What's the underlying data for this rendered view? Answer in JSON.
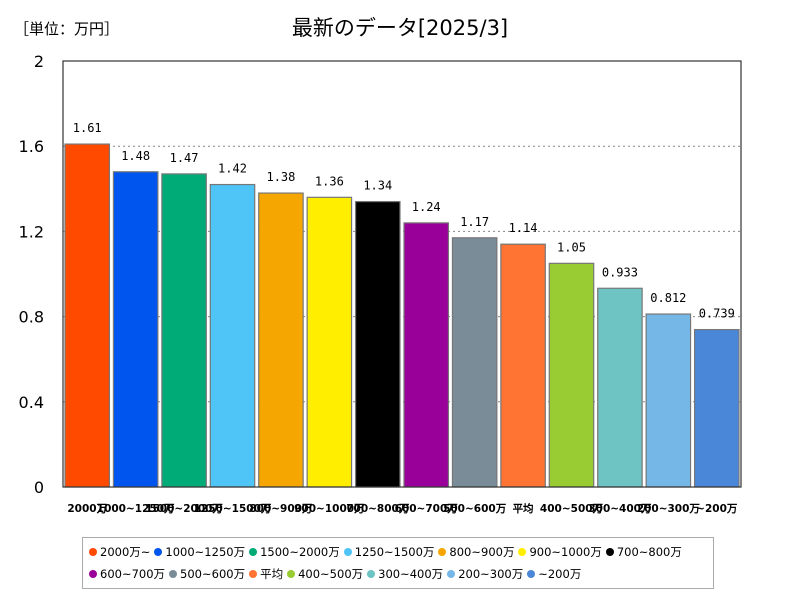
{
  "unit_label": "［単位：万円］",
  "chart_data": {
    "type": "bar",
    "title": "最新のデータ[2025/3]",
    "ylim": [
      0,
      2
    ],
    "yticks": [
      "0",
      "0.4",
      "0.8",
      "1.2",
      "1.6",
      "2"
    ],
    "categories": [
      "2000万",
      "1000~1250万",
      "1500~2000万",
      "1250~1500万",
      "800~900万",
      "900~1000万",
      "700~800万",
      "600~700万",
      "500~600万",
      "平均",
      "400~500万",
      "300~400万",
      "200~300万",
      "~200万"
    ],
    "values": [
      1.61,
      1.48,
      1.47,
      1.42,
      1.38,
      1.36,
      1.34,
      1.24,
      1.17,
      1.14,
      1.05,
      0.933,
      0.812,
      0.739
    ],
    "value_labels": [
      "1.61",
      "1.48",
      "1.47",
      "1.42",
      "1.38",
      "1.36",
      "1.34",
      "1.24",
      "1.17",
      "1.14",
      "1.05",
      "0.933",
      "0.812",
      "0.739"
    ],
    "colors": [
      "#ff4a00",
      "#0055ee",
      "#00ab78",
      "#4fc4f7",
      "#f5a600",
      "#ffee00",
      "#000000",
      "#990099",
      "#7b8c99",
      "#ff7333",
      "#99cc33",
      "#6ec3c3",
      "#75b8e8",
      "#4a87d8"
    ],
    "legend": [
      "2000万~",
      "1000~1250万",
      "1500~2000万",
      "1250~1500万",
      "800~900万",
      "900~1000万",
      "700~800万",
      "600~700万",
      "500~600万",
      "平均",
      "400~500万",
      "300~400万",
      "200~300万",
      "~200万"
    ],
    "legend_position": "bottom",
    "grid": true
  }
}
